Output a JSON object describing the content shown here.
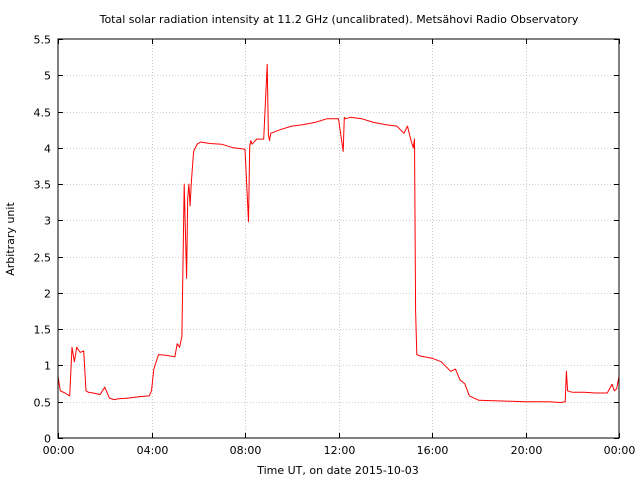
{
  "chart_data": {
    "type": "line",
    "title": "Total solar radiation intensity at 11.2 GHz (uncalibrated). Metsähovi Radio Observatory",
    "xlabel": "Time UT, on date 2015-10-03",
    "ylabel": "Arbitrary unit",
    "xlim": [
      0,
      24
    ],
    "ylim": [
      0,
      5.5
    ],
    "x_ticks": [
      0,
      4,
      8,
      12,
      16,
      20,
      24
    ],
    "x_tick_labels": [
      "00:00",
      "04:00",
      "08:00",
      "12:00",
      "16:00",
      "20:00",
      "00:00"
    ],
    "y_ticks": [
      0,
      0.5,
      1,
      1.5,
      2,
      2.5,
      3,
      3.5,
      4,
      4.5,
      5,
      5.5
    ],
    "y_tick_labels": [
      "0",
      "0.5",
      "1",
      "1.5",
      "2",
      "2.5",
      "3",
      "3.5",
      "4",
      "4.5",
      "5",
      "5.5"
    ],
    "grid": true,
    "series": [
      {
        "color": "#ff0000",
        "x": [
          0.0,
          0.1,
          0.3,
          0.5,
          0.6,
          0.7,
          0.8,
          0.95,
          1.1,
          1.2,
          1.3,
          1.5,
          1.8,
          2.0,
          2.2,
          2.4,
          2.6,
          3.0,
          3.5,
          3.9,
          4.0,
          4.1,
          4.3,
          4.6,
          5.0,
          5.1,
          5.2,
          5.3,
          5.4,
          5.5,
          5.55,
          5.6,
          5.65,
          5.7,
          5.8,
          5.95,
          6.1,
          6.5,
          7.0,
          7.5,
          8.0,
          8.15,
          8.2,
          8.25,
          8.3,
          8.5,
          8.8,
          8.95,
          9.0,
          9.05,
          9.1,
          9.5,
          10.0,
          10.5,
          11.0,
          11.5,
          12.0,
          12.2,
          12.25,
          12.3,
          12.5,
          13.0,
          13.5,
          14.0,
          14.5,
          14.8,
          14.95,
          15.1,
          15.2,
          15.25,
          15.3,
          15.35,
          15.5,
          16.0,
          16.4,
          16.8,
          17.0,
          17.2,
          17.4,
          17.6,
          18.0,
          19.0,
          20.0,
          21.0,
          21.5,
          21.7,
          21.75,
          21.8,
          22.0,
          22.5,
          23.0,
          23.5,
          23.7,
          23.8,
          23.9,
          24.0
        ],
        "y": [
          0.85,
          0.65,
          0.62,
          0.58,
          1.25,
          1.05,
          1.25,
          1.18,
          1.2,
          0.65,
          0.63,
          0.62,
          0.6,
          0.7,
          0.55,
          0.53,
          0.54,
          0.55,
          0.57,
          0.58,
          0.65,
          0.95,
          1.15,
          1.14,
          1.12,
          1.3,
          1.25,
          1.4,
          3.5,
          2.2,
          3.3,
          3.5,
          3.2,
          3.5,
          3.95,
          4.05,
          4.08,
          4.06,
          4.05,
          4.0,
          3.98,
          2.98,
          4.02,
          4.1,
          4.05,
          4.12,
          4.12,
          5.15,
          4.18,
          4.1,
          4.2,
          4.25,
          4.3,
          4.32,
          4.35,
          4.4,
          4.4,
          3.95,
          4.42,
          4.4,
          4.42,
          4.4,
          4.35,
          4.32,
          4.3,
          4.2,
          4.3,
          4.1,
          4.0,
          4.12,
          1.75,
          1.15,
          1.13,
          1.1,
          1.05,
          0.92,
          0.95,
          0.8,
          0.75,
          0.58,
          0.52,
          0.51,
          0.5,
          0.5,
          0.49,
          0.5,
          0.92,
          0.65,
          0.63,
          0.63,
          0.62,
          0.62,
          0.74,
          0.65,
          0.68,
          0.85
        ]
      }
    ]
  }
}
